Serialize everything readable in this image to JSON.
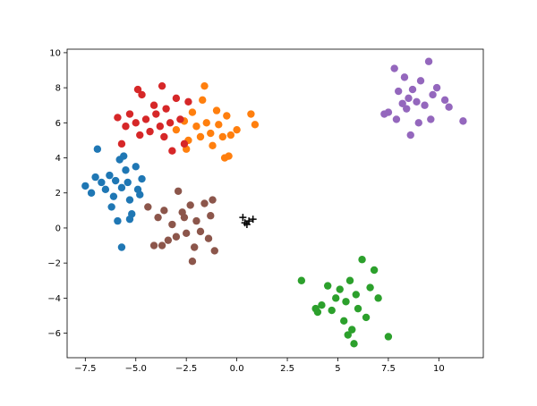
{
  "chart_data": {
    "type": "scatter",
    "xlim": [
      -8.4,
      12.2
    ],
    "ylim": [
      -7.4,
      10.2
    ],
    "xticks": [
      {
        "value": -7.5,
        "label": "−7.5"
      },
      {
        "value": -5.0,
        "label": "−5.0"
      },
      {
        "value": -2.5,
        "label": "−2.5"
      },
      {
        "value": 0,
        "label": "0.0"
      },
      2.5,
      5.0,
      7.5,
      10.0
    ],
    "yticks": [
      {
        "value": -6,
        "label": "−6"
      },
      {
        "value": -4,
        "label": "−4"
      },
      {
        "value": -2,
        "label": "−2"
      },
      0,
      2,
      4,
      6,
      8,
      10
    ],
    "series": [
      {
        "color": "#1f77b4",
        "marker": "circle",
        "x": [
          -7.5,
          -7.2,
          -7.0,
          -6.9,
          -6.7,
          -6.5,
          -6.3,
          -6.1,
          -6.0,
          -5.8,
          -5.7,
          -5.6,
          -5.5,
          -5.4,
          -5.3,
          -5.2,
          -5.0,
          -4.9,
          -4.8,
          -5.9,
          -5.7,
          -5.3,
          -6.2,
          -4.7
        ],
        "y": [
          2.4,
          2.0,
          2.9,
          4.5,
          2.6,
          2.2,
          3.0,
          1.8,
          2.7,
          3.9,
          2.3,
          4.1,
          3.3,
          2.6,
          1.6,
          0.8,
          3.5,
          2.2,
          1.9,
          0.4,
          -1.1,
          0.5,
          1.2,
          2.8
        ]
      },
      {
        "color": "#ff7f0e",
        "marker": "circle",
        "x": [
          -3.0,
          -2.6,
          -2.4,
          -2.2,
          -2.0,
          -1.8,
          -1.6,
          -1.5,
          -1.3,
          -1.2,
          -1.0,
          -0.9,
          -0.7,
          -0.5,
          -0.4,
          -0.3,
          0.0,
          0.7,
          0.9,
          -2.5,
          -1.7,
          -0.6
        ],
        "y": [
          5.6,
          6.1,
          5.0,
          6.6,
          5.8,
          5.2,
          8.1,
          6.0,
          5.4,
          4.7,
          6.7,
          5.9,
          5.2,
          6.4,
          4.1,
          5.3,
          5.6,
          6.5,
          5.9,
          4.5,
          7.3,
          4.0
        ]
      },
      {
        "color": "#2ca02c",
        "marker": "circle",
        "x": [
          3.2,
          3.9,
          4.2,
          4.5,
          4.7,
          4.9,
          5.1,
          5.3,
          5.4,
          5.6,
          5.7,
          5.8,
          5.9,
          6.0,
          6.2,
          6.4,
          6.6,
          6.8,
          7.0,
          7.5,
          5.5,
          4.0
        ],
        "y": [
          -3.0,
          -4.6,
          -4.4,
          -3.3,
          -4.7,
          -4.0,
          -3.5,
          -5.3,
          -4.2,
          -3.0,
          -5.8,
          -6.6,
          -3.8,
          -4.6,
          -1.8,
          -5.1,
          -3.4,
          -2.4,
          -4.0,
          -6.2,
          -6.1,
          -4.8
        ]
      },
      {
        "color": "#d62728",
        "marker": "circle",
        "x": [
          -5.9,
          -5.5,
          -5.3,
          -5.0,
          -4.8,
          -4.7,
          -4.5,
          -4.3,
          -4.1,
          -4.0,
          -3.8,
          -3.7,
          -3.5,
          -3.3,
          -3.2,
          -3.0,
          -2.8,
          -2.6,
          -2.4,
          -5.7,
          -4.9,
          -3.6
        ],
        "y": [
          6.3,
          5.8,
          6.5,
          6.0,
          5.3,
          7.6,
          6.2,
          5.5,
          7.0,
          6.5,
          5.8,
          8.1,
          6.8,
          6.0,
          4.4,
          7.4,
          6.2,
          4.8,
          7.2,
          4.8,
          7.9,
          5.2
        ]
      },
      {
        "color": "#9467bd",
        "marker": "circle",
        "x": [
          7.5,
          7.8,
          7.9,
          8.0,
          8.2,
          8.3,
          8.4,
          8.5,
          8.6,
          8.7,
          8.9,
          9.0,
          9.1,
          9.3,
          9.5,
          9.6,
          9.7,
          10.3,
          10.5,
          11.2,
          7.3,
          9.9
        ],
        "y": [
          6.6,
          9.1,
          6.2,
          7.8,
          7.1,
          8.6,
          6.8,
          7.4,
          5.3,
          7.9,
          7.2,
          6.0,
          8.4,
          7.0,
          9.5,
          6.2,
          7.6,
          7.3,
          6.9,
          6.1,
          6.5,
          8.0
        ]
      },
      {
        "color": "#8c564b",
        "marker": "circle",
        "x": [
          -4.4,
          -4.1,
          -3.9,
          -3.6,
          -3.4,
          -3.2,
          -3.0,
          -2.9,
          -2.7,
          -2.5,
          -2.3,
          -2.1,
          -2.0,
          -1.8,
          -1.6,
          -1.4,
          -1.3,
          -1.1,
          -2.2,
          -1.2,
          -3.7,
          -2.6
        ],
        "y": [
          1.2,
          -1.0,
          0.6,
          1.0,
          -0.7,
          0.2,
          -0.5,
          2.1,
          0.9,
          -0.3,
          1.3,
          -1.1,
          0.4,
          -0.2,
          1.4,
          -0.6,
          0.7,
          -1.3,
          -1.9,
          1.6,
          -1.0,
          0.6
        ]
      },
      {
        "color": "#000000",
        "marker": "plus",
        "x": [
          0.3,
          0.4,
          0.6,
          0.8,
          0.5
        ],
        "y": [
          0.6,
          0.3,
          0.4,
          0.5,
          0.2
        ]
      }
    ]
  }
}
